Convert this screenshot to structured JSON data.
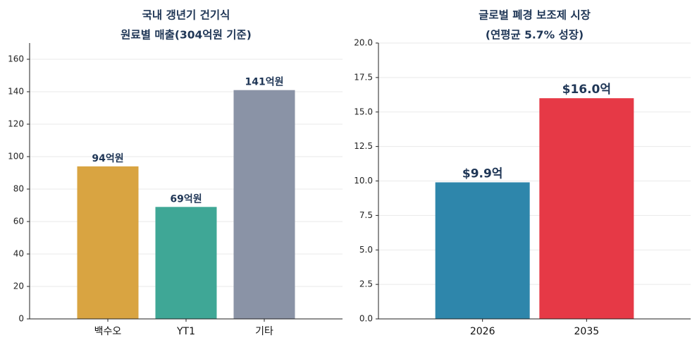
{
  "chart_data": [
    {
      "type": "bar",
      "title_lines": [
        "국내 갱년기 건기식",
        "원료별 매출(304억원 기준)"
      ],
      "categories": [
        "백수오",
        "YT1",
        "기타"
      ],
      "values": [
        94,
        69,
        141
      ],
      "data_labels": [
        "94억원",
        "69억원",
        "141억원"
      ],
      "colors": [
        "#d9a441",
        "#3fa796",
        "#8a93a6"
      ],
      "ylim": [
        0,
        170
      ],
      "yticks": [
        0,
        20,
        40,
        60,
        80,
        100,
        120,
        140,
        160
      ],
      "ytick_labels": [
        "0",
        "20",
        "40",
        "60",
        "80",
        "100",
        "120",
        "140",
        "160"
      ],
      "grid": true,
      "xlabel": "",
      "ylabel": ""
    },
    {
      "type": "bar",
      "title_lines": [
        "글로벌 폐경 보조제 시장",
        "(연평균 5.7% 성장)"
      ],
      "categories": [
        "2026",
        "2035"
      ],
      "values": [
        9.9,
        16.0
      ],
      "data_labels": [
        "$9.9억",
        "$16.0억"
      ],
      "colors": [
        "#2e86ab",
        "#e63946"
      ],
      "ylim": [
        0,
        20
      ],
      "yticks": [
        0,
        2.5,
        5,
        7.5,
        10,
        12.5,
        15,
        17.5,
        20
      ],
      "ytick_labels": [
        "0.0",
        "2.5",
        "5.0",
        "7.5",
        "10.0",
        "12.5",
        "15.0",
        "17.5",
        "20.0"
      ],
      "grid": true,
      "xlabel": "",
      "ylabel": ""
    }
  ]
}
